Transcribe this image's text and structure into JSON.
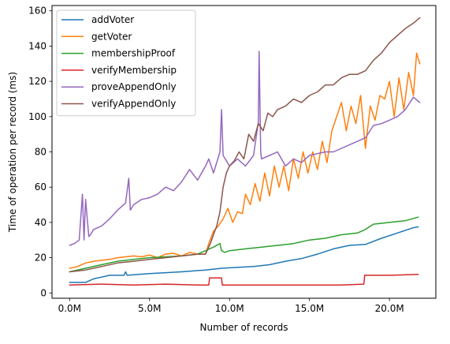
{
  "chart_data": {
    "type": "line",
    "title": "",
    "xlabel": "Number of records",
    "ylabel": "Time of operation per record (ms)",
    "xlim": [
      -1100000,
      22900000
    ],
    "ylim": [
      -3,
      163
    ],
    "xticks": [
      0,
      5000000,
      10000000,
      15000000,
      20000000
    ],
    "xtick_labels": [
      "0.0M",
      "5.0M",
      "10.0M",
      "15.0M",
      "20.0M"
    ],
    "yticks": [
      0,
      20,
      40,
      60,
      80,
      100,
      120,
      140,
      160
    ],
    "ytick_labels": [
      "0",
      "20",
      "40",
      "60",
      "80",
      "100",
      "120",
      "140",
      "160"
    ],
    "grid": false,
    "legend": "upper-left",
    "series": [
      {
        "name": "addVoter",
        "color": "#1f77b4",
        "x": [
          0,
          1000000,
          1500000,
          2500000,
          3400000,
          3500000,
          3600000,
          5000000,
          7000000,
          8500000,
          9500000,
          10500000,
          11500000,
          12500000,
          13500000,
          14500000,
          15500000,
          16500000,
          17500000,
          18500000,
          19500000,
          20500000,
          21500000,
          21800000
        ],
        "y": [
          6,
          6,
          8,
          10,
          10,
          12,
          10,
          11,
          12,
          13,
          14,
          14.5,
          15,
          16,
          18,
          19.5,
          22,
          25,
          27,
          27.5,
          31,
          34,
          37,
          37.5
        ]
      },
      {
        "name": "getVoter",
        "color": "#ff7f0e",
        "x": [
          0,
          500000,
          1000000,
          1500000,
          2000000,
          2500000,
          3000000,
          3500000,
          4000000,
          4500000,
          5000000,
          5500000,
          6000000,
          6500000,
          7000000,
          7500000,
          8000000,
          8500000,
          8700000,
          9000000,
          9300000,
          9600000,
          9900000,
          10200000,
          10500000,
          10800000,
          11000000,
          11300000,
          11600000,
          11900000,
          12200000,
          12500000,
          12800000,
          13100000,
          13400000,
          13700000,
          14000000,
          14300000,
          14600000,
          14900000,
          15200000,
          15500000,
          15800000,
          16100000,
          16400000,
          16700000,
          17000000,
          17300000,
          17600000,
          17900000,
          18200000,
          18500000,
          18800000,
          19100000,
          19400000,
          19700000,
          20000000,
          20300000,
          20600000,
          20900000,
          21200000,
          21500000,
          21700000,
          21900000
        ],
        "y": [
          14,
          15,
          17,
          18,
          18.5,
          19,
          20,
          20.5,
          21,
          20.5,
          21.5,
          20,
          22,
          22.5,
          21,
          23,
          22,
          22,
          28,
          35,
          38,
          42,
          48,
          40,
          46,
          45,
          56,
          50,
          62,
          52,
          68,
          55,
          72,
          60,
          72,
          58,
          76,
          65,
          80,
          68,
          80,
          70,
          86,
          74,
          92,
          100,
          108,
          92,
          106,
          96,
          112,
          82,
          106,
          98,
          112,
          110,
          120,
          100,
          122,
          104,
          125,
          112,
          136,
          130
        ]
      },
      {
        "name": "membershipProof",
        "color": "#2ca02c",
        "x": [
          0,
          1000000,
          2000000,
          3000000,
          4000000,
          5000000,
          6000000,
          7000000,
          8000000,
          9000000,
          9400000,
          9500000,
          9700000,
          10000000,
          11000000,
          12000000,
          13000000,
          14000000,
          15000000,
          16000000,
          17000000,
          18000000,
          18500000,
          19000000,
          20000000,
          21000000,
          21800000
        ],
        "y": [
          12,
          14,
          16,
          18,
          19,
          20,
          20.5,
          21,
          22,
          26,
          28,
          24,
          23,
          24,
          25,
          26,
          27,
          28,
          30,
          31,
          33,
          34,
          36,
          39,
          40,
          41,
          43
        ]
      },
      {
        "name": "verifyMembership",
        "color": "#d62728",
        "x": [
          0,
          2000000,
          4000000,
          6000000,
          8000000,
          8700000,
          8750000,
          9500000,
          9550000,
          11000000,
          13000000,
          15000000,
          17000000,
          18400000,
          18450000,
          20000000,
          21800000
        ],
        "y": [
          4.5,
          5,
          4.5,
          5,
          4.5,
          4.5,
          8.5,
          8.5,
          4.5,
          4.5,
          4.5,
          4.5,
          4.5,
          5,
          10,
          10,
          10.5
        ]
      },
      {
        "name": "proveAppendOnly",
        "color": "#9467bd",
        "x": [
          0,
          300000,
          600000,
          800000,
          900000,
          1000000,
          1200000,
          1300000,
          1500000,
          2000000,
          2500000,
          3000000,
          3500000,
          3700000,
          3800000,
          4000000,
          4500000,
          5000000,
          5500000,
          6000000,
          6500000,
          7000000,
          7500000,
          8000000,
          8500000,
          8700000,
          9000000,
          9400000,
          9500000,
          9600000,
          9800000,
          10000000,
          10500000,
          11000000,
          11500000,
          11800000,
          11850000,
          11950000,
          12000000,
          12500000,
          13000000,
          13500000,
          14000000,
          14500000,
          15000000,
          15500000,
          16000000,
          16500000,
          17000000,
          17500000,
          18000000,
          18500000,
          19000000,
          19500000,
          20000000,
          20500000,
          21000000,
          21500000,
          21900000
        ],
        "y": [
          27,
          28,
          30,
          56,
          30,
          53,
          32,
          33,
          36,
          38,
          42,
          47,
          51,
          65,
          47,
          50,
          53,
          54,
          56,
          60,
          58,
          63,
          70,
          64,
          72,
          76,
          68,
          80,
          104,
          78,
          75,
          72,
          76,
          72,
          78,
          97,
          137,
          80,
          76,
          78,
          80,
          72,
          76,
          74,
          78,
          79,
          80,
          80,
          82,
          84,
          86,
          88,
          95,
          96,
          98,
          100,
          104,
          111,
          108
        ]
      },
      {
        "name": "verifyAppendOnly",
        "color": "#8c564b",
        "x": [
          0,
          1000000,
          2000000,
          3000000,
          4000000,
          5000000,
          6000000,
          7000000,
          8000000,
          8500000,
          8800000,
          9000000,
          9200000,
          9400000,
          9600000,
          9800000,
          10000000,
          10300000,
          10600000,
          10900000,
          11200000,
          11500000,
          11800000,
          12100000,
          12400000,
          12700000,
          13000000,
          13500000,
          14000000,
          14500000,
          15000000,
          15500000,
          16000000,
          16500000,
          17000000,
          17500000,
          18000000,
          18500000,
          19000000,
          19500000,
          20000000,
          20500000,
          21000000,
          21500000,
          21900000
        ],
        "y": [
          12,
          13,
          15,
          17,
          18,
          19,
          20,
          21,
          22,
          22,
          28,
          33,
          38,
          46,
          60,
          68,
          72,
          75,
          80,
          76,
          90,
          86,
          96,
          92,
          102,
          100,
          104,
          106,
          110,
          108,
          112,
          114,
          118,
          118,
          122,
          124,
          124,
          126,
          132,
          136,
          142,
          146,
          150,
          153,
          156
        ]
      }
    ]
  }
}
